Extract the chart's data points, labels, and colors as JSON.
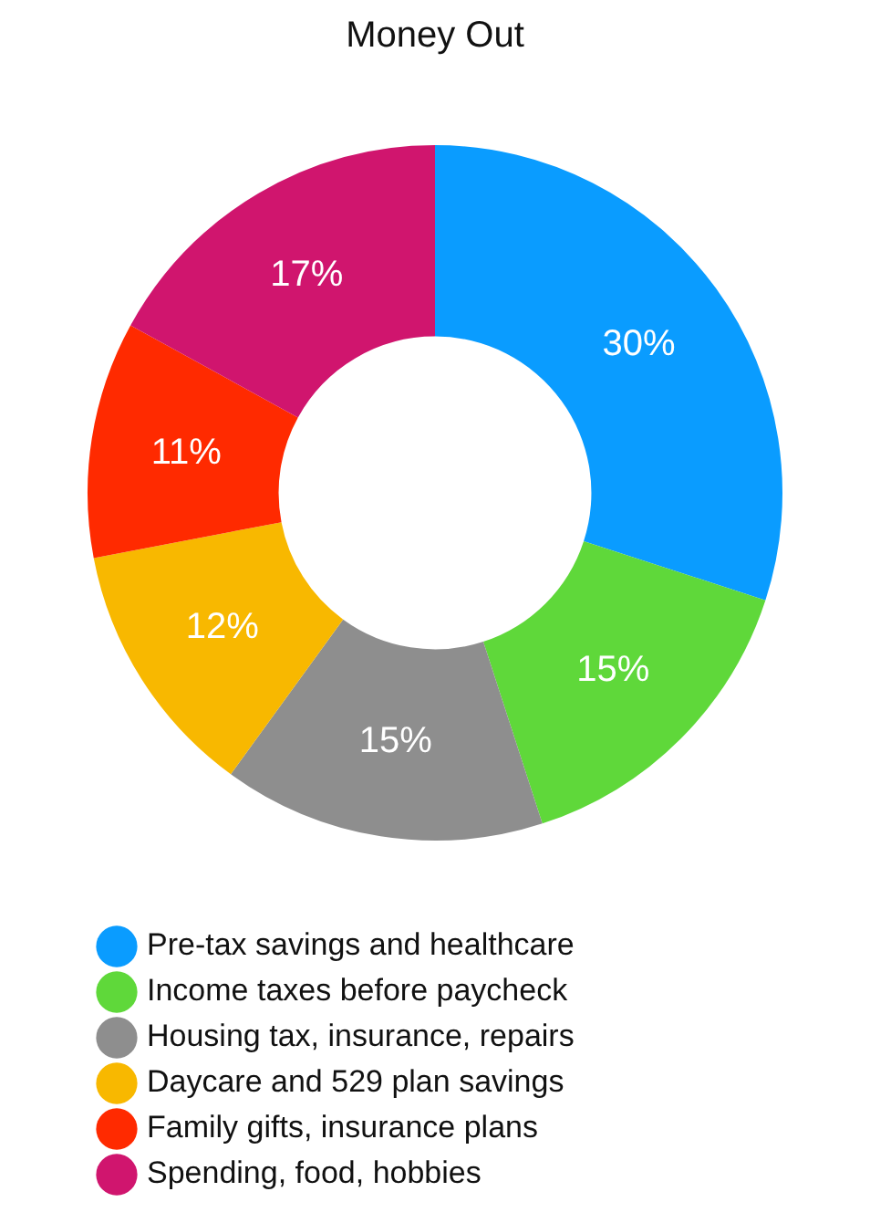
{
  "chart_data": {
    "type": "donut",
    "title": "Money Out",
    "categories": [
      "Pre-tax savings and healthcare",
      "Income taxes before paycheck",
      "Housing tax, insurance, repairs",
      "Daycare and 529 plan savings",
      "Family gifts, insurance plans",
      "Spending, food, hobbies"
    ],
    "values": [
      30,
      15,
      15,
      12,
      11,
      17
    ],
    "value_labels": [
      "30%",
      "15%",
      "15%",
      "12%",
      "11%",
      "17%"
    ],
    "colors": [
      "#0a9cff",
      "#5fd83a",
      "#8e8e8e",
      "#f8b800",
      "#ff2a00",
      "#d0156e"
    ],
    "legend": "bottom"
  }
}
